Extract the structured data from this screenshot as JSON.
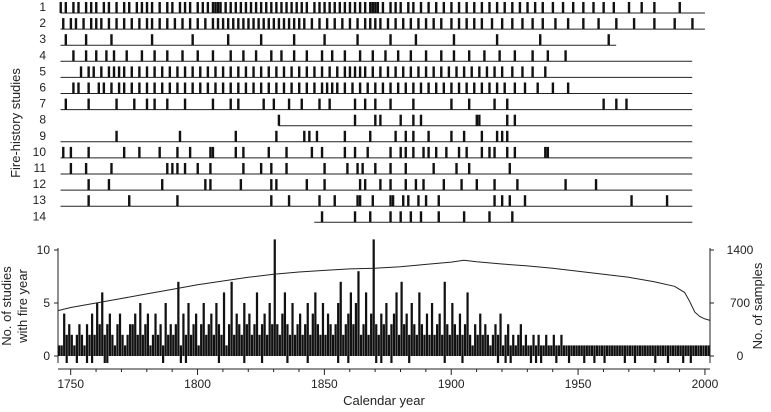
{
  "chart_data": [
    {
      "type": "event-raster",
      "title": "",
      "ylabel": "Fire-history studies",
      "xlim": [
        1745,
        2002
      ],
      "rows": [
        {
          "label": "1",
          "span": [
            1746,
            2000
          ],
          "fire_years": [
            1746,
            1748,
            1751,
            1753,
            1756,
            1758,
            1760,
            1763,
            1765,
            1768,
            1771,
            1773,
            1776,
            1778,
            1780,
            1782,
            1785,
            1788,
            1790,
            1793,
            1795,
            1797,
            1800,
            1802,
            1804,
            1806,
            1807,
            1808,
            1809,
            1811,
            1813,
            1815,
            1817,
            1819,
            1821,
            1823,
            1825,
            1827,
            1829,
            1831,
            1833,
            1835,
            1837,
            1839,
            1841,
            1843,
            1846,
            1848,
            1850,
            1852,
            1854,
            1856,
            1858,
            1860,
            1862,
            1864,
            1866,
            1868,
            1869,
            1870,
            1871,
            1873,
            1876,
            1878,
            1880,
            1883,
            1885,
            1888,
            1891,
            1894,
            1897,
            1900,
            1903,
            1906,
            1909,
            1912,
            1915,
            1918,
            1921,
            1924,
            1927,
            1930,
            1933,
            1936,
            1940,
            1944,
            1948,
            1952,
            1956,
            1960,
            1964,
            1970,
            1975,
            1980,
            1990
          ]
        },
        {
          "label": "2",
          "span": [
            1746,
            2000
          ],
          "fire_years": [
            1747,
            1750,
            1752,
            1755,
            1758,
            1760,
            1762,
            1765,
            1768,
            1771,
            1774,
            1777,
            1780,
            1782,
            1785,
            1788,
            1791,
            1794,
            1797,
            1800,
            1803,
            1806,
            1808,
            1810,
            1812,
            1814,
            1816,
            1818,
            1820,
            1822,
            1824,
            1826,
            1828,
            1830,
            1832,
            1834,
            1836,
            1838,
            1840,
            1842,
            1845,
            1848,
            1851,
            1854,
            1857,
            1860,
            1863,
            1866,
            1868,
            1870,
            1872,
            1875,
            1878,
            1881,
            1884,
            1887,
            1890,
            1893,
            1896,
            1900,
            1903,
            1906,
            1909,
            1912,
            1916,
            1920,
            1924,
            1928,
            1932,
            1936,
            1941,
            1946,
            1952,
            1958,
            1965,
            1972,
            1980,
            1988,
            1995
          ]
        },
        {
          "label": "3",
          "span": [
            1746,
            1965
          ],
          "fire_years": [
            1748,
            1756,
            1766,
            1782,
            1798,
            1812,
            1825,
            1838,
            1850,
            1863,
            1876,
            1886,
            1901,
            1918,
            1935,
            1962
          ]
        },
        {
          "label": "4",
          "span": [
            1746,
            1995
          ],
          "fire_years": [
            1751,
            1756,
            1760,
            1764,
            1767,
            1772,
            1778,
            1783,
            1788,
            1794,
            1800,
            1806,
            1813,
            1818,
            1823,
            1829,
            1833,
            1838,
            1843,
            1849,
            1853,
            1858,
            1864,
            1869,
            1874,
            1879,
            1884,
            1890,
            1896,
            1901,
            1907,
            1913,
            1919,
            1925,
            1932,
            1938,
            1945
          ]
        },
        {
          "label": "5",
          "span": [
            1746,
            1995
          ],
          "fire_years": [
            1754,
            1757,
            1759,
            1762,
            1765,
            1767,
            1769,
            1771,
            1774,
            1777,
            1780,
            1783,
            1786,
            1789,
            1792,
            1795,
            1798,
            1801,
            1804,
            1807,
            1810,
            1813,
            1816,
            1819,
            1822,
            1825,
            1828,
            1831,
            1834,
            1837,
            1840,
            1843,
            1846,
            1849,
            1852,
            1855,
            1858,
            1860,
            1862,
            1864,
            1866,
            1869,
            1872,
            1875,
            1878,
            1881,
            1884,
            1887,
            1890,
            1893,
            1896,
            1899,
            1902,
            1905,
            1908,
            1911,
            1914,
            1917,
            1920,
            1924,
            1928,
            1932,
            1937
          ]
        },
        {
          "label": "6",
          "span": [
            1746,
            1995
          ],
          "fire_years": [
            1751,
            1753,
            1757,
            1761,
            1763,
            1766,
            1769,
            1771,
            1774,
            1777,
            1780,
            1783,
            1786,
            1789,
            1792,
            1795,
            1798,
            1801,
            1804,
            1807,
            1810,
            1813,
            1816,
            1819,
            1822,
            1825,
            1828,
            1831,
            1834,
            1837,
            1840,
            1843,
            1846,
            1849,
            1851,
            1853,
            1855,
            1858,
            1861,
            1864,
            1867,
            1870,
            1873,
            1876,
            1879,
            1882,
            1885,
            1888,
            1891,
            1894,
            1897,
            1900,
            1903,
            1906,
            1909,
            1912,
            1915,
            1918,
            1921,
            1925,
            1929,
            1934,
            1940,
            1946
          ]
        },
        {
          "label": "7",
          "span": [
            1746,
            1995
          ],
          "fire_years": [
            1748,
            1757,
            1768,
            1775,
            1780,
            1783,
            1788,
            1795,
            1806,
            1813,
            1816,
            1826,
            1830,
            1836,
            1841,
            1848,
            1852,
            1862,
            1866,
            1870,
            1876,
            1885,
            1900,
            1907,
            1917,
            1922,
            1960,
            1965,
            1969
          ]
        },
        {
          "label": "8",
          "span": [
            1832,
            1995
          ],
          "fire_years": [
            1832,
            1862,
            1870,
            1872,
            1880,
            1885,
            1888,
            1910,
            1911,
            1922,
            1925
          ]
        },
        {
          "label": "9",
          "span": [
            1746,
            1995
          ],
          "fire_years": [
            1768,
            1793,
            1815,
            1831,
            1842,
            1844,
            1847,
            1858,
            1868,
            1878,
            1882,
            1885,
            1891,
            1900,
            1905,
            1912,
            1918,
            1920,
            1922
          ]
        },
        {
          "label": "10",
          "span": [
            1746,
            1995
          ],
          "fire_years": [
            1747,
            1750,
            1757,
            1771,
            1777,
            1785,
            1792,
            1797,
            1805,
            1806,
            1815,
            1818,
            1828,
            1835,
            1845,
            1849,
            1858,
            1862,
            1867,
            1876,
            1880,
            1882,
            1885,
            1889,
            1891,
            1894,
            1898,
            1903,
            1906,
            1912,
            1915,
            1917,
            1922,
            1925,
            1937,
            1938
          ]
        },
        {
          "label": "11",
          "span": [
            1746,
            1995
          ],
          "fire_years": [
            1750,
            1756,
            1766,
            1788,
            1790,
            1792,
            1795,
            1800,
            1805,
            1818,
            1825,
            1829,
            1835,
            1850,
            1859,
            1863,
            1865,
            1870,
            1876,
            1882,
            1893,
            1902,
            1907,
            1923
          ]
        },
        {
          "label": "12",
          "span": [
            1746,
            1995
          ],
          "fire_years": [
            1757,
            1765,
            1786,
            1803,
            1805,
            1817,
            1829,
            1831,
            1843,
            1850,
            1864,
            1866,
            1872,
            1876,
            1882,
            1886,
            1889,
            1897,
            1904,
            1910,
            1917,
            1926,
            1945,
            1957
          ]
        },
        {
          "label": "13",
          "span": [
            1746,
            1995
          ],
          "fire_years": [
            1757,
            1773,
            1792,
            1829,
            1836,
            1848,
            1854,
            1863,
            1864,
            1869,
            1876,
            1877,
            1881,
            1883,
            1887,
            1890,
            1895,
            1917,
            1920,
            1923,
            1929,
            1971,
            1985
          ]
        },
        {
          "label": "14",
          "span": [
            1846,
            1995
          ],
          "fire_years": [
            1849,
            1862,
            1868,
            1876,
            1880,
            1884,
            1888,
            1895,
            1905,
            1915,
            1924
          ]
        }
      ]
    },
    {
      "type": "bar",
      "title": "",
      "xlabel": "Calendar year",
      "ylabel": "No. of studies with fire year",
      "y2label": "No. of samples",
      "xlim": [
        1745,
        2002
      ],
      "ylim": [
        0,
        10.5
      ],
      "y2lim": [
        0,
        1400
      ],
      "xticks": [
        "1750",
        "1800",
        "1850",
        "1900",
        "1950",
        "2000"
      ],
      "yticks": [
        "0",
        "5",
        "10"
      ],
      "y2ticks": [
        "0",
        "700",
        "1400"
      ],
      "bar_start_year": 1745,
      "bar_values": [
        1,
        1,
        4,
        2,
        3,
        2,
        1,
        2,
        3,
        2,
        1,
        3,
        2,
        4,
        2,
        5,
        3,
        6,
        2,
        3,
        4,
        2,
        1,
        3,
        4,
        2,
        1,
        2,
        3,
        3,
        4,
        2,
        5,
        2,
        3,
        4,
        1,
        2,
        4,
        2,
        3,
        1,
        5,
        2,
        3,
        2,
        3,
        7,
        1,
        4,
        2,
        5,
        2,
        3,
        4,
        1,
        3,
        5,
        2,
        3,
        4,
        2,
        5,
        3,
        2,
        6,
        1,
        3,
        7,
        2,
        4,
        3,
        2,
        5,
        3,
        4,
        2,
        3,
        6,
        2,
        3,
        4,
        2,
        5,
        3,
        11,
        3,
        2,
        4,
        6,
        3,
        2,
        5,
        2,
        3,
        4,
        2,
        3,
        5,
        2,
        4,
        6,
        3,
        2,
        5,
        2,
        4,
        3,
        2,
        3,
        5,
        7,
        2,
        3,
        4,
        6,
        3,
        5,
        8,
        2,
        3,
        6,
        2,
        4,
        11,
        3,
        2,
        4,
        3,
        5,
        2,
        3,
        4,
        6,
        2,
        7,
        3,
        4,
        2,
        5,
        3,
        2,
        6,
        3,
        2,
        4,
        2,
        5,
        2,
        3,
        4,
        2,
        7,
        3,
        2,
        5,
        3,
        2,
        4,
        2,
        3,
        6,
        2,
        1,
        3,
        2,
        4,
        2,
        3,
        2,
        1,
        2,
        3,
        2,
        4,
        1,
        2,
        3,
        1,
        2,
        1,
        2,
        3,
        1,
        2,
        1,
        1,
        2,
        1,
        2,
        1,
        1,
        2,
        1,
        1,
        2,
        1,
        1,
        2,
        1,
        1,
        1,
        1,
        1,
        1,
        1,
        1,
        1,
        1,
        1,
        1,
        1,
        1,
        1,
        1,
        1,
        1,
        1,
        1,
        1,
        1,
        1,
        1,
        1,
        1,
        1,
        1,
        1,
        1,
        1,
        1,
        1,
        1,
        1,
        1,
        1,
        1,
        1,
        1,
        1,
        1,
        1,
        1,
        1,
        1,
        1,
        1,
        1,
        1,
        1,
        1,
        1,
        1,
        1,
        1,
        1,
        1
      ],
      "zero_year_markers": [
        1748,
        1752,
        1756,
        1758,
        1763,
        1764,
        1786,
        1793,
        1795,
        1808,
        1818,
        1825,
        1835,
        1843,
        1855,
        1859,
        1870,
        1872,
        1876,
        1883,
        1897,
        1904,
        1918,
        1921,
        1923,
        1931,
        1933,
        1935,
        1941,
        1946,
        1952,
        1956,
        1960,
        1968,
        1972,
        1980,
        1985,
        1991,
        1994
      ],
      "sample_curve": {
        "x": [
          1745,
          1750,
          1760,
          1770,
          1780,
          1790,
          1800,
          1810,
          1820,
          1830,
          1840,
          1850,
          1860,
          1870,
          1880,
          1890,
          1900,
          1905,
          1910,
          1920,
          1930,
          1940,
          1950,
          1960,
          1970,
          1980,
          1988,
          1992,
          1994,
          1996,
          1998,
          2000,
          2002
        ],
        "y": [
          600,
          640,
          700,
          760,
          820,
          880,
          940,
          990,
          1040,
          1080,
          1110,
          1130,
          1150,
          1160,
          1180,
          1210,
          1240,
          1265,
          1245,
          1215,
          1190,
          1160,
          1120,
          1080,
          1040,
          980,
          920,
          840,
          720,
          580,
          520,
          490,
          470
        ]
      }
    }
  ]
}
